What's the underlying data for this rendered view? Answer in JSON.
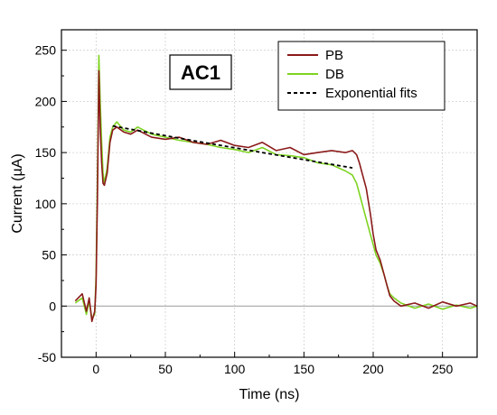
{
  "chart_data": {
    "type": "line",
    "xlabel": "Time (ns)",
    "ylabel": "Current (µA)",
    "xlim": [
      -25,
      275
    ],
    "ylim": [
      -50,
      270
    ],
    "x_ticks": [
      "0",
      "50",
      "100",
      "150",
      "200",
      "250"
    ],
    "y_ticks": [
      "-50",
      "0",
      "50",
      "100",
      "150",
      "200",
      "250"
    ],
    "grid": true,
    "legend_position": "top-right",
    "annotation": "AC1",
    "series": [
      {
        "name": "PB",
        "style": "solid",
        "color": "#8b1a1a",
        "x": [
          -15,
          -10,
          -7,
          -5,
          -3,
          -1,
          0,
          1,
          2,
          3,
          4,
          5,
          6,
          8,
          10,
          12,
          15,
          20,
          25,
          30,
          40,
          50,
          60,
          70,
          80,
          90,
          100,
          110,
          120,
          130,
          140,
          150,
          160,
          170,
          180,
          185,
          188,
          190,
          192,
          195,
          198,
          200,
          202,
          205,
          208,
          210,
          212,
          215,
          220,
          230,
          240,
          250,
          260,
          270,
          275
        ],
        "y": [
          5,
          12,
          -5,
          8,
          -15,
          -5,
          20,
          110,
          230,
          175,
          140,
          120,
          118,
          130,
          160,
          172,
          175,
          170,
          168,
          172,
          165,
          163,
          165,
          160,
          158,
          162,
          157,
          155,
          160,
          152,
          155,
          148,
          150,
          152,
          150,
          152,
          148,
          140,
          130,
          115,
          90,
          70,
          55,
          45,
          30,
          20,
          10,
          5,
          0,
          3,
          -2,
          4,
          0,
          3,
          0
        ]
      },
      {
        "name": "DB",
        "style": "solid",
        "color": "#7ed321",
        "x": [
          -15,
          -10,
          -7,
          -5,
          -3,
          -1,
          0,
          1,
          2,
          3,
          4,
          5,
          6,
          8,
          10,
          12,
          15,
          20,
          25,
          30,
          40,
          50,
          60,
          70,
          80,
          90,
          100,
          110,
          120,
          130,
          140,
          150,
          160,
          170,
          175,
          180,
          185,
          188,
          190,
          192,
          195,
          198,
          200,
          202,
          205,
          208,
          210,
          212,
          215,
          220,
          230,
          240,
          250,
          260,
          270,
          275
        ],
        "y": [
          3,
          8,
          -8,
          5,
          -12,
          -8,
          30,
          130,
          245,
          200,
          160,
          130,
          120,
          135,
          165,
          175,
          180,
          172,
          170,
          175,
          168,
          165,
          162,
          160,
          158,
          155,
          153,
          150,
          155,
          148,
          147,
          145,
          140,
          138,
          135,
          132,
          128,
          120,
          110,
          100,
          85,
          70,
          60,
          50,
          42,
          30,
          20,
          12,
          8,
          3,
          -2,
          2,
          -3,
          1,
          -2,
          0
        ]
      },
      {
        "name": "Exponential fits",
        "style": "dashed",
        "color": "#000000",
        "x": [
          12,
          60,
          120,
          185
        ],
        "y": [
          176,
          164,
          150,
          135
        ]
      }
    ]
  }
}
